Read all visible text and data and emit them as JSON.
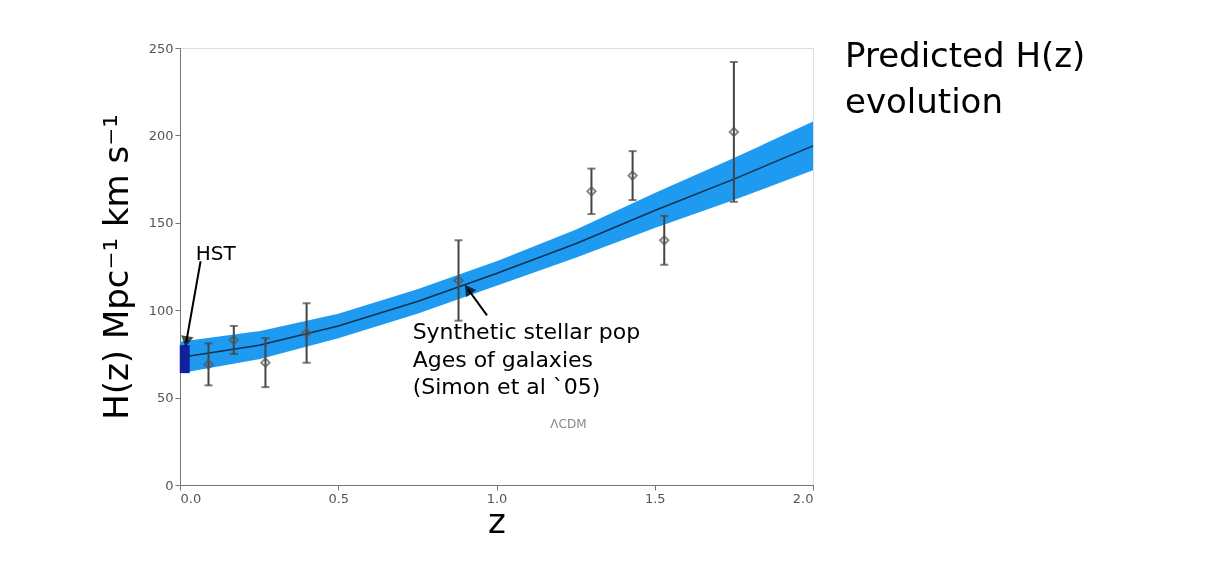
{
  "chart_data": {
    "type": "scatter",
    "title": "Predicted H(z) evolution",
    "xlabel": "z",
    "ylabel": "H(z) Mpc⁻¹ km s⁻¹",
    "xlim": [
      0,
      2
    ],
    "xticks": [
      {
        "value": 0,
        "label": "0.0"
      },
      {
        "value": 0.5,
        "label": "0.5"
      },
      {
        "value": 1,
        "label": "1.0"
      },
      {
        "value": 1.5,
        "label": "1.5"
      },
      {
        "value": 2,
        "label": "2.0"
      }
    ],
    "ylim": [
      0,
      250
    ],
    "yticks": [
      0,
      50,
      100,
      150,
      200,
      250
    ],
    "grid": false,
    "series": [
      {
        "type": "line",
        "color": "#10304f",
        "x": [
          0,
          0.25,
          0.5,
          0.75,
          1.0,
          1.25,
          1.5,
          1.75,
          2.0
        ],
        "values": [
          73,
          80,
          91,
          105,
          121,
          138,
          157,
          175,
          194
        ],
        "lower": [
          64,
          72,
          84,
          98,
          114,
          130,
          147,
          163,
          180
        ],
        "upper": [
          82,
          88,
          98,
          112,
          128,
          146,
          167,
          187,
          208
        ]
      },
      {
        "type": "bar",
        "color": "#1020a0",
        "x": [
          0.015
        ],
        "base": [
          64
        ],
        "values": [
          16
        ]
      },
      {
        "color": "#555555",
        "marker": "diamond",
        "x": [
          0.09,
          0.17,
          0.27,
          0.4,
          0.88,
          1.3,
          1.43,
          1.53,
          1.75
        ],
        "values": [
          69,
          83,
          70,
          87,
          117,
          168,
          177,
          140,
          202
        ],
        "errors": [
          12,
          8,
          14,
          17,
          23,
          13,
          14,
          14,
          40
        ]
      }
    ],
    "annotations": [
      {
        "text": "HST",
        "x": 0.02,
        "y": 82
      },
      {
        "text": "Synthetic stellar pop\nAges of galaxies\n(Simon et al `05)",
        "x": 0.91,
        "y": 112
      },
      "ΛCDM"
    ]
  }
}
